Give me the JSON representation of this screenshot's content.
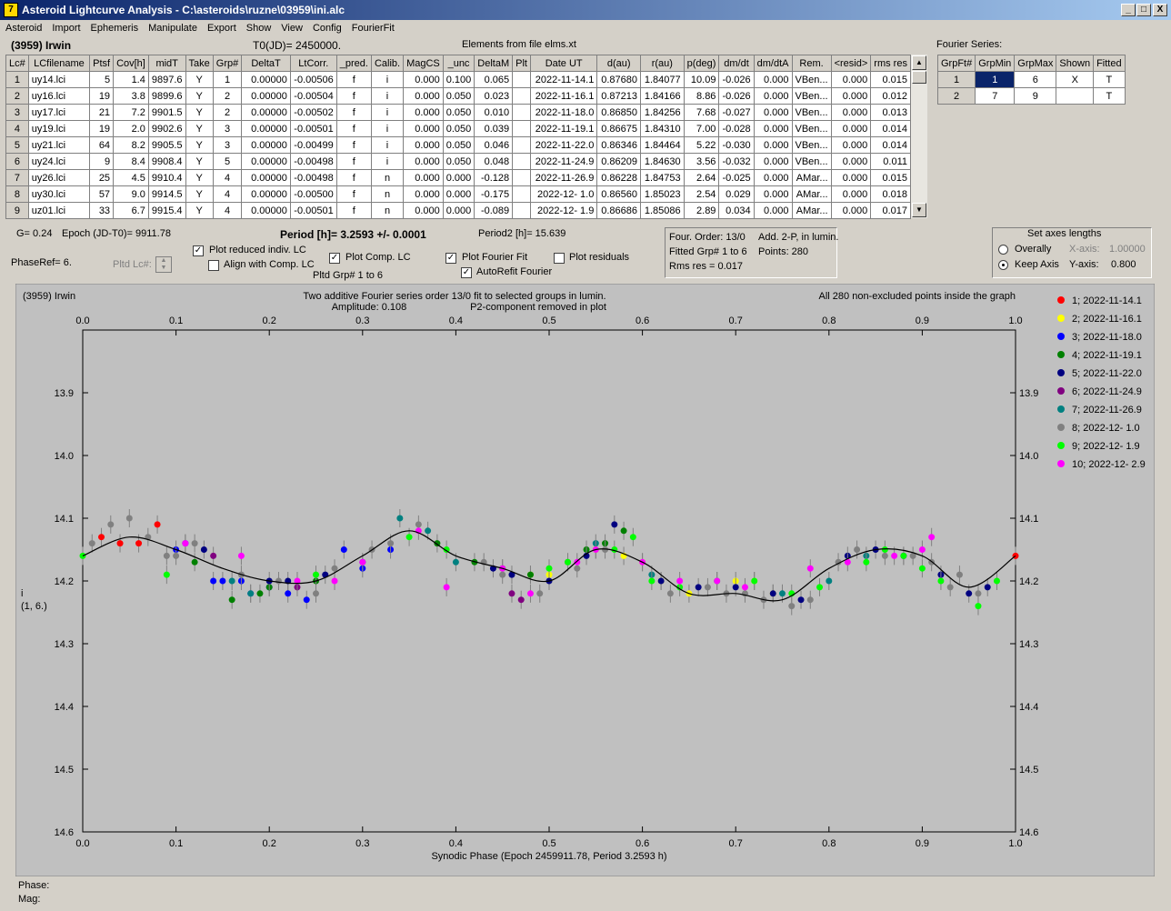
{
  "window": {
    "title": "Asteroid Lightcurve Analysis - C:\\asteroids\\ruzne\\03959\\ini.alc",
    "icon_label": "7",
    "minimize": "_",
    "maximize": "□",
    "close": "X"
  },
  "menu": [
    "Asteroid",
    "Import",
    "Ephemeris",
    "Manipulate",
    "Export",
    "Show",
    "View",
    "Config",
    "FourierFit"
  ],
  "header": {
    "asteroid": "(3959) Irwin",
    "t0": "T0(JD)= 2450000.",
    "elements": "Elements from file elms.xt",
    "fourier_series": "Fourier Series:"
  },
  "lc_table": {
    "columns": [
      "Lc#",
      "LCfilename",
      "Ptsf",
      "Cov[h]",
      "midT",
      "Take",
      "Grp#",
      "DeltaT",
      "LtCorr.",
      "_pred.",
      "Calib.",
      "MagCS",
      "_unc",
      "DeltaM",
      "Plt",
      "Date UT",
      "d(au)",
      "r(au)",
      "p(deg)",
      "dm/dt",
      "dm/dtA",
      "Rem.",
      "<resid>",
      "rms res"
    ],
    "rows": [
      [
        "1",
        "uy14.lci",
        "5",
        "1.4",
        "9897.6",
        "Y",
        "1",
        "0.00000",
        "-0.00506",
        "f",
        "i",
        "0.000",
        "0.100",
        "0.065",
        "",
        "2022-11-14.1",
        "0.87680",
        "1.84077",
        "10.09",
        "-0.026",
        "0.000",
        "VBen...",
        "0.000",
        "0.015"
      ],
      [
        "2",
        "uy16.lci",
        "19",
        "3.8",
        "9899.6",
        "Y",
        "2",
        "0.00000",
        "-0.00504",
        "f",
        "i",
        "0.000",
        "0.050",
        "0.023",
        "",
        "2022-11-16.1",
        "0.87213",
        "1.84166",
        "8.86",
        "-0.026",
        "0.000",
        "VBen...",
        "0.000",
        "0.012"
      ],
      [
        "3",
        "uy17.lci",
        "21",
        "7.2",
        "9901.5",
        "Y",
        "2",
        "0.00000",
        "-0.00502",
        "f",
        "i",
        "0.000",
        "0.050",
        "0.010",
        "",
        "2022-11-18.0",
        "0.86850",
        "1.84256",
        "7.68",
        "-0.027",
        "0.000",
        "VBen...",
        "0.000",
        "0.013"
      ],
      [
        "4",
        "uy19.lci",
        "19",
        "2.0",
        "9902.6",
        "Y",
        "3",
        "0.00000",
        "-0.00501",
        "f",
        "i",
        "0.000",
        "0.050",
        "0.039",
        "",
        "2022-11-19.1",
        "0.86675",
        "1.84310",
        "7.00",
        "-0.028",
        "0.000",
        "VBen...",
        "0.000",
        "0.014"
      ],
      [
        "5",
        "uy21.lci",
        "64",
        "8.2",
        "9905.5",
        "Y",
        "3",
        "0.00000",
        "-0.00499",
        "f",
        "i",
        "0.000",
        "0.050",
        "0.046",
        "",
        "2022-11-22.0",
        "0.86346",
        "1.84464",
        "5.22",
        "-0.030",
        "0.000",
        "VBen...",
        "0.000",
        "0.014"
      ],
      [
        "6",
        "uy24.lci",
        "9",
        "8.4",
        "9908.4",
        "Y",
        "5",
        "0.00000",
        "-0.00498",
        "f",
        "i",
        "0.000",
        "0.050",
        "0.048",
        "",
        "2022-11-24.9",
        "0.86209",
        "1.84630",
        "3.56",
        "-0.032",
        "0.000",
        "VBen...",
        "0.000",
        "0.011"
      ],
      [
        "7",
        "uy26.lci",
        "25",
        "4.5",
        "9910.4",
        "Y",
        "4",
        "0.00000",
        "-0.00498",
        "f",
        "n",
        "0.000",
        "0.000",
        "-0.128",
        "",
        "2022-11-26.9",
        "0.86228",
        "1.84753",
        "2.64",
        "-0.025",
        "0.000",
        "AMar...",
        "0.000",
        "0.015"
      ],
      [
        "8",
        "uy30.lci",
        "57",
        "9.0",
        "9914.5",
        "Y",
        "4",
        "0.00000",
        "-0.00500",
        "f",
        "n",
        "0.000",
        "0.000",
        "-0.175",
        "",
        "2022-12- 1.0",
        "0.86560",
        "1.85023",
        "2.54",
        "0.029",
        "0.000",
        "AMar...",
        "0.000",
        "0.018"
      ],
      [
        "9",
        "uz01.lci",
        "33",
        "6.7",
        "9915.4",
        "Y",
        "4",
        "0.00000",
        "-0.00501",
        "f",
        "n",
        "0.000",
        "0.000",
        "-0.089",
        "",
        "2022-12- 1.9",
        "0.86686",
        "1.85086",
        "2.89",
        "0.034",
        "0.000",
        "AMar...",
        "0.000",
        "0.017"
      ]
    ]
  },
  "fourier_table": {
    "columns": [
      "GrpFt#",
      "GrpMin",
      "GrpMax",
      "Shown",
      "Fitted"
    ],
    "rows": [
      [
        "1",
        "1",
        "6",
        "X",
        "T"
      ],
      [
        "2",
        "7",
        "9",
        "",
        "T"
      ]
    ]
  },
  "info": {
    "g": "G= 0.24",
    "epoch": "Epoch (JD-T0)= 9911.78",
    "period": "Period [h]= 3.2593 +/- 0.0001",
    "period2": "Period2 [h]= 15.639",
    "phaseref": "PhaseRef= 6.",
    "pltd_lc": "Pltd Lc#:",
    "pltd_grp": "Pltd Grp#  1   to   6"
  },
  "checkboxes": {
    "plot_reduced": {
      "label": "Plot reduced indiv. LC",
      "checked": true
    },
    "align_comp": {
      "label": "Align with Comp. LC",
      "checked": false
    },
    "plot_comp": {
      "label": "Plot Comp. LC",
      "checked": true
    },
    "plot_fourier": {
      "label": "Plot Fourier Fit",
      "checked": true
    },
    "autorefit": {
      "label": "AutoRefit Fourier",
      "checked": true
    },
    "plot_residuals": {
      "label": "Plot residuals",
      "checked": false
    }
  },
  "fit_summary": {
    "order": "Four. Order: 13/0",
    "add": "Add. 2-P, in lumin.",
    "fitted": "Fitted Grp# 1 to 6",
    "points": "Points: 280",
    "rms": "Rms res     = 0.017"
  },
  "axes_box": {
    "title": "Set axes lengths",
    "overally": "Overally",
    "keep_axis": "Keep Axis",
    "selected": "keep_axis",
    "xaxis_label": "X-axis:",
    "xaxis_value": "1.00000",
    "yaxis_label": "Y-axis:",
    "yaxis_value": "0.800"
  },
  "plot": {
    "object": "(3959) Irwin",
    "caption1": "Two additive Fourier series order 13/0 fit to selected groups in lumin.",
    "caption2_amp": "Amplitude: 0.108",
    "caption2_p2": "P2-component removed in plot",
    "caption_right": "All 280 non-excluded points inside the graph",
    "xlabel": "Synodic Phase (Epoch 2459911.78, Period 3.2593 h)",
    "ylabel_line1": "i",
    "ylabel_line2": "(1, 6.)",
    "xticks": [
      "0.0",
      "0.1",
      "0.2",
      "0.3",
      "0.4",
      "0.5",
      "0.6",
      "0.7",
      "0.8",
      "0.9",
      "1.0"
    ],
    "yticks": [
      "13.9",
      "14.0",
      "14.1",
      "14.2",
      "14.3",
      "14.4",
      "14.5",
      "14.6"
    ],
    "legend": [
      {
        "label": "1; 2022-11-14.1",
        "color": "#ff0000"
      },
      {
        "label": "2; 2022-11-16.1",
        "color": "#ffff00"
      },
      {
        "label": "3; 2022-11-18.0",
        "color": "#0000ff"
      },
      {
        "label": "4; 2022-11-19.1",
        "color": "#008000"
      },
      {
        "label": "5; 2022-11-22.0",
        "color": "#000080"
      },
      {
        "label": "6; 2022-11-24.9",
        "color": "#800080"
      },
      {
        "label": "7; 2022-11-26.9",
        "color": "#008080"
      },
      {
        "label": "8; 2022-12- 1.0",
        "color": "#808080"
      },
      {
        "label": "9; 2022-12- 1.9",
        "color": "#00ff00"
      },
      {
        "label": "10; 2022-12- 2.9",
        "color": "#ff00ff"
      }
    ]
  },
  "chart_data": {
    "type": "scatter",
    "xlim": [
      0.0,
      1.0
    ],
    "ylim": [
      13.8,
      14.6
    ],
    "y_inverted": true,
    "fourier_curve": {
      "x": [
        0.0,
        0.05,
        0.1,
        0.15,
        0.2,
        0.25,
        0.3,
        0.35,
        0.4,
        0.45,
        0.5,
        0.55,
        0.6,
        0.65,
        0.7,
        0.75,
        0.8,
        0.85,
        0.9,
        0.95,
        1.0
      ],
      "y": [
        14.16,
        14.13,
        14.15,
        14.18,
        14.2,
        14.2,
        14.16,
        14.12,
        14.16,
        14.18,
        14.2,
        14.15,
        14.17,
        14.22,
        14.22,
        14.23,
        14.18,
        14.15,
        14.16,
        14.21,
        14.16
      ]
    },
    "series": [
      {
        "name": "1; 2022-11-14.1",
        "color": "#ff0000",
        "x": [
          0.02,
          0.04,
          0.06,
          0.08,
          1.0
        ],
        "y": [
          14.13,
          14.14,
          14.14,
          14.11,
          14.16
        ]
      },
      {
        "name": "2; 2022-11-16.1",
        "color": "#ffff00",
        "x": [
          0.48,
          0.5,
          0.55,
          0.58,
          0.6,
          0.62,
          0.65,
          0.7,
          0.72,
          0.74
        ],
        "y": [
          14.19,
          14.19,
          14.15,
          14.16,
          14.17,
          14.2,
          14.22,
          14.2,
          14.2,
          14.22
        ]
      },
      {
        "name": "3; 2022-11-18.0",
        "color": "#0000ff",
        "x": [
          0.1,
          0.11,
          0.14,
          0.15,
          0.17,
          0.18,
          0.2,
          0.22,
          0.24,
          0.28,
          0.3,
          0.33
        ],
        "y": [
          14.15,
          14.14,
          14.2,
          14.2,
          14.2,
          14.22,
          14.21,
          14.22,
          14.23,
          14.15,
          14.18,
          14.15
        ]
      },
      {
        "name": "4; 2022-11-19.1",
        "color": "#008000",
        "x": [
          0.12,
          0.16,
          0.19,
          0.2,
          0.25,
          0.38,
          0.42,
          0.45,
          0.48,
          0.52,
          0.54,
          0.56,
          0.58
        ],
        "y": [
          14.17,
          14.23,
          14.22,
          14.21,
          14.2,
          14.14,
          14.17,
          14.18,
          14.19,
          14.17,
          14.15,
          14.14,
          14.12
        ]
      },
      {
        "name": "5; 2022-11-22.0",
        "color": "#000080",
        "x": [
          0.13,
          0.2,
          0.22,
          0.26,
          0.3,
          0.44,
          0.46,
          0.5,
          0.54,
          0.57,
          0.62,
          0.66,
          0.7,
          0.74,
          0.77,
          0.82,
          0.85,
          0.88,
          0.92,
          0.95,
          0.97
        ],
        "y": [
          14.15,
          14.2,
          14.2,
          14.19,
          14.17,
          14.18,
          14.19,
          14.2,
          14.16,
          14.11,
          14.2,
          14.21,
          14.21,
          14.22,
          14.23,
          14.16,
          14.15,
          14.16,
          14.19,
          14.22,
          14.21
        ]
      },
      {
        "name": "6; 2022-11-24.9",
        "color": "#800080",
        "x": [
          0.14,
          0.23,
          0.46,
          0.47
        ],
        "y": [
          14.16,
          14.21,
          14.22,
          14.23
        ]
      },
      {
        "name": "7; 2022-11-26.9",
        "color": "#008080",
        "x": [
          0.16,
          0.18,
          0.34,
          0.37,
          0.4,
          0.55,
          0.61,
          0.75,
          0.8,
          0.84
        ],
        "y": [
          14.2,
          14.22,
          14.1,
          14.12,
          14.17,
          14.14,
          14.19,
          14.22,
          14.2,
          14.16
        ]
      },
      {
        "name": "8; 2022-12- 1.0",
        "color": "#808080",
        "x": [
          0.01,
          0.03,
          0.05,
          0.07,
          0.09,
          0.1,
          0.12,
          0.17,
          0.21,
          0.25,
          0.27,
          0.31,
          0.33,
          0.36,
          0.43,
          0.45,
          0.49,
          0.53,
          0.56,
          0.63,
          0.67,
          0.69,
          0.71,
          0.73,
          0.76,
          0.78,
          0.81,
          0.83,
          0.86,
          0.89,
          0.91,
          0.93,
          0.94,
          0.96
        ],
        "y": [
          14.14,
          14.11,
          14.1,
          14.13,
          14.16,
          14.16,
          14.14,
          14.19,
          14.2,
          14.22,
          14.18,
          14.15,
          14.14,
          14.11,
          14.17,
          14.19,
          14.22,
          14.18,
          14.15,
          14.22,
          14.21,
          14.22,
          14.22,
          14.23,
          14.24,
          14.23,
          14.17,
          14.15,
          14.16,
          14.16,
          14.17,
          14.21,
          14.19,
          14.22
        ]
      },
      {
        "name": "9; 2022-12- 1.9",
        "color": "#00ff00",
        "x": [
          0.0,
          0.09,
          0.25,
          0.35,
          0.39,
          0.5,
          0.52,
          0.57,
          0.59,
          0.61,
          0.64,
          0.68,
          0.72,
          0.76,
          0.79,
          0.84,
          0.86,
          0.88,
          0.9,
          0.92,
          0.96,
          0.98
        ],
        "y": [
          14.16,
          14.19,
          14.19,
          14.13,
          14.15,
          14.18,
          14.17,
          14.15,
          14.13,
          14.2,
          14.21,
          14.2,
          14.2,
          14.22,
          14.21,
          14.17,
          14.15,
          14.16,
          14.18,
          14.2,
          14.24,
          14.2
        ]
      },
      {
        "name": "10; 2022-12- 2.9",
        "color": "#ff00ff",
        "x": [
          0.11,
          0.17,
          0.23,
          0.27,
          0.3,
          0.36,
          0.39,
          0.45,
          0.48,
          0.53,
          0.55,
          0.6,
          0.64,
          0.68,
          0.71,
          0.78,
          0.82,
          0.87,
          0.9,
          0.91
        ],
        "y": [
          14.14,
          14.16,
          14.2,
          14.2,
          14.17,
          14.12,
          14.21,
          14.18,
          14.22,
          14.17,
          14.15,
          14.17,
          14.2,
          14.2,
          14.21,
          14.18,
          14.17,
          14.16,
          14.15,
          14.13
        ]
      }
    ]
  },
  "status": {
    "phase": "Phase:",
    "mag": "Mag:"
  }
}
